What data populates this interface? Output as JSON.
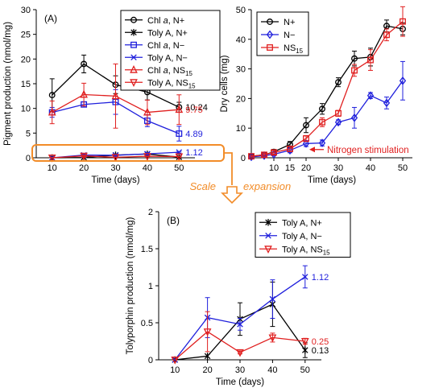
{
  "figure": {
    "scale_label": "Scale",
    "expansion_label": "expansion",
    "accent_orange": "#f28c28"
  },
  "chart_data": [
    {
      "id": "A",
      "panel_label": "(A)",
      "type": "line",
      "xlabel": "Time (days)",
      "ylabel": "Pigment production (nmol/mg)",
      "xlim": [
        5,
        55
      ],
      "ylim": [
        0,
        30
      ],
      "xticks": [
        10,
        20,
        30,
        40,
        50
      ],
      "yticks": [
        0,
        5,
        10,
        15,
        20,
        25,
        30
      ],
      "legend_position": "top-right",
      "series": [
        {
          "name": [
            "Chl ",
            "a",
            ", N+",
            ""
          ],
          "color": "#000000",
          "marker": "circle",
          "x": [
            10,
            20,
            30,
            40,
            50
          ],
          "y": [
            12.7,
            19.0,
            14.8,
            13.3,
            10.24
          ],
          "err": [
            3.3,
            1.8,
            1.8,
            1.6,
            1.0
          ]
        },
        {
          "name": [
            "Toly A, N+",
            "",
            "",
            ""
          ],
          "color": "#000000",
          "marker": "star",
          "x": [
            10,
            20,
            30,
            40,
            50
          ],
          "y": [
            0.0,
            0.05,
            0.55,
            0.75,
            0.13
          ],
          "err": [
            0.05,
            0.1,
            0.2,
            0.3,
            0.1
          ]
        },
        {
          "name": [
            "Chl ",
            "a",
            ", N−",
            ""
          ],
          "color": "#1f1fdc",
          "marker": "square",
          "x": [
            10,
            20,
            30,
            40,
            50
          ],
          "y": [
            9.2,
            10.8,
            11.3,
            7.5,
            4.89
          ],
          "err": [
            1.0,
            0.5,
            2.5,
            1.2,
            1.5
          ]
        },
        {
          "name": [
            "Toly A, N−",
            "",
            "",
            ""
          ],
          "color": "#1f1fdc",
          "marker": "x",
          "x": [
            10,
            20,
            30,
            40,
            50
          ],
          "y": [
            0.0,
            0.55,
            0.5,
            0.8,
            1.12
          ],
          "err": [
            0.05,
            0.25,
            0.2,
            0.25,
            0.15
          ]
        },
        {
          "name": [
            "Chl ",
            "a",
            ", NS",
            "15"
          ],
          "color": "#e01f1f",
          "marker": "triangle",
          "x": [
            10,
            20,
            30,
            40,
            50
          ],
          "y": [
            9.2,
            12.8,
            12.5,
            9.2,
            9.75
          ],
          "err": [
            2.3,
            2.3,
            6.5,
            2.5,
            3.0
          ]
        },
        {
          "name": [
            "Toly A, NS",
            "15",
            "",
            ""
          ],
          "color": "#e01f1f",
          "marker": "tri-down",
          "x": [
            10,
            20,
            30,
            40,
            50
          ],
          "y": [
            0.0,
            0.38,
            0.1,
            0.3,
            0.25
          ],
          "err": [
            0.05,
            0.25,
            0.03,
            0.06,
            0.05
          ]
        }
      ],
      "end_labels": [
        {
          "text": "10.24",
          "y": 10.24,
          "color": "#000000"
        },
        {
          "text": "9.75",
          "y": 9.75,
          "color": "#e01f1f"
        },
        {
          "text": "4.89",
          "y": 4.89,
          "color": "#1f1fdc"
        },
        {
          "text": "1.12",
          "y": 1.12,
          "color": "#1f1fdc"
        }
      ]
    },
    {
      "id": "C",
      "panel_label": "(C)",
      "type": "line",
      "xlabel": "Time (days)",
      "ylabel": "Dry cells (mg)",
      "xlim": [
        3,
        53
      ],
      "ylim": [
        0,
        50
      ],
      "xticks": [
        10,
        15,
        20,
        30,
        40,
        50
      ],
      "yticks": [
        0,
        10,
        20,
        30,
        40,
        50
      ],
      "legend_position": "top-left",
      "annotation": "Nitrogen stimulation",
      "annotation_color": "#e01f1f",
      "series": [
        {
          "name": [
            "N+",
            "",
            "",
            ""
          ],
          "color": "#000000",
          "marker": "circle",
          "x": [
            3,
            7,
            10,
            15,
            20,
            25,
            30,
            35,
            40,
            45,
            50
          ],
          "y": [
            0.5,
            1.0,
            2.0,
            4.5,
            11.0,
            16.5,
            25.5,
            33.5,
            34.0,
            44.5,
            43.5
          ],
          "err": [
            0.3,
            0.5,
            0.8,
            1.0,
            2.5,
            1.8,
            1.5,
            2.5,
            3.0,
            2.0,
            2.0
          ]
        },
        {
          "name": [
            "N−",
            "",
            "",
            ""
          ],
          "color": "#1f1fdc",
          "marker": "diamond",
          "x": [
            3,
            7,
            10,
            15,
            20,
            25,
            30,
            35,
            40,
            45,
            50
          ],
          "y": [
            0.3,
            0.7,
            1.2,
            2.5,
            4.8,
            5.0,
            12.0,
            13.5,
            21.0,
            18.5,
            26.0
          ],
          "err": [
            0.2,
            0.3,
            0.5,
            0.8,
            1.0,
            1.0,
            0.8,
            3.5,
            1.0,
            2.0,
            6.5
          ]
        },
        {
          "name": [
            "NS",
            "15",
            "",
            ""
          ],
          "color": "#e01f1f",
          "marker": "square",
          "x": [
            3,
            7,
            10,
            15,
            20,
            25,
            30,
            35,
            40,
            45,
            50
          ],
          "y": [
            0.5,
            1.0,
            1.8,
            3.0,
            6.5,
            12.0,
            15.0,
            29.5,
            33.0,
            41.5,
            46.0
          ],
          "err": [
            0.3,
            0.5,
            0.6,
            0.8,
            1.0,
            1.5,
            1.0,
            2.0,
            3.5,
            2.0,
            5.0
          ]
        }
      ]
    },
    {
      "id": "B",
      "panel_label": "(B)",
      "type": "line",
      "xlabel": "Time (days)",
      "ylabel": "Tolyporphin production (nmol/mg)",
      "xlim": [
        5,
        55
      ],
      "ylim": [
        0,
        2
      ],
      "xticks": [
        10,
        20,
        30,
        40,
        50
      ],
      "yticks": [
        0,
        0.5,
        1,
        1.5,
        2
      ],
      "legend_position": "top-right",
      "series": [
        {
          "name": [
            "Toly A, N+",
            "",
            "",
            ""
          ],
          "color": "#000000",
          "marker": "star",
          "x": [
            10,
            20,
            30,
            40,
            50
          ],
          "y": [
            0.0,
            0.05,
            0.55,
            0.75,
            0.13
          ],
          "err": [
            0.0,
            0.0,
            0.22,
            0.3,
            0.1
          ]
        },
        {
          "name": [
            "Toly A, N−",
            "",
            "",
            ""
          ],
          "color": "#1f1fdc",
          "marker": "x",
          "x": [
            10,
            20,
            30,
            40,
            50
          ],
          "y": [
            0.0,
            0.57,
            0.48,
            0.82,
            1.12
          ],
          "err": [
            0.0,
            0.27,
            0.08,
            0.26,
            0.15
          ]
        },
        {
          "name": [
            "Toly A, NS",
            "15",
            "",
            ""
          ],
          "color": "#e01f1f",
          "marker": "tri-down",
          "x": [
            10,
            20,
            30,
            40,
            50
          ],
          "y": [
            0.0,
            0.38,
            0.1,
            0.3,
            0.25
          ],
          "err": [
            0.0,
            0.27,
            0.02,
            0.06,
            0.04
          ]
        }
      ],
      "end_labels": [
        {
          "text": "1.12",
          "y": 1.12,
          "color": "#1f1fdc"
        },
        {
          "text": "0.25",
          "y": 0.25,
          "color": "#e01f1f"
        },
        {
          "text": "0.13",
          "y": 0.13,
          "color": "#000000"
        }
      ]
    }
  ]
}
